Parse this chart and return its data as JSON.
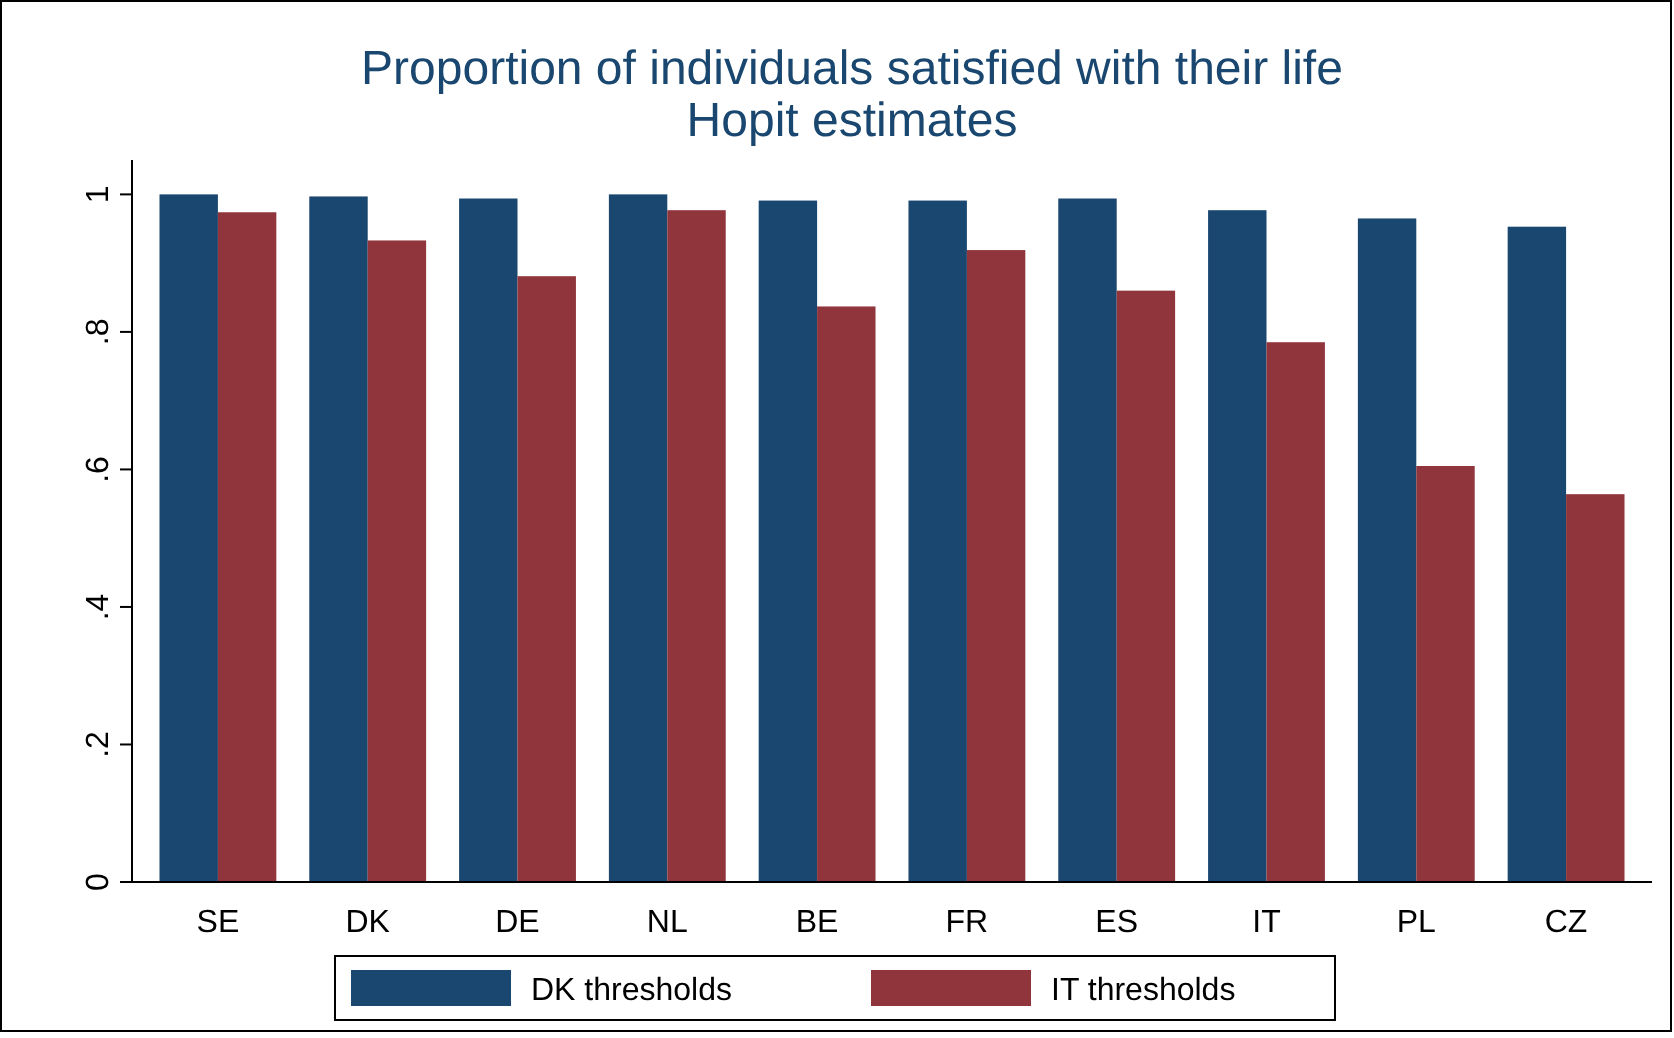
{
  "chart_data": {
    "type": "bar",
    "title": "Proportion of individuals satisfied with their life",
    "subtitle": "Hopit estimates",
    "categories": [
      "SE",
      "DK",
      "DE",
      "NL",
      "BE",
      "FR",
      "ES",
      "IT",
      "PL",
      "CZ"
    ],
    "series": [
      {
        "name": "DK thresholds",
        "color": "#1a476f",
        "values": [
          1.0,
          0.997,
          0.994,
          1.0,
          0.991,
          0.991,
          0.994,
          0.977,
          0.965,
          0.953
        ]
      },
      {
        "name": "IT thresholds",
        "color": "#90353b",
        "values": [
          0.974,
          0.933,
          0.881,
          0.977,
          0.837,
          0.919,
          0.86,
          0.785,
          0.605,
          0.564
        ]
      }
    ],
    "ylim": [
      0,
      1.05
    ],
    "yticks": [
      {
        "value": 0,
        "label": "0"
      },
      {
        "value": 0.2,
        "label": ".2"
      },
      {
        "value": 0.4,
        "label": ".4"
      },
      {
        "value": 0.6,
        "label": ".6"
      },
      {
        "value": 0.8,
        "label": ".8"
      },
      {
        "value": 1,
        "label": "1"
      }
    ],
    "grid": false,
    "legend": "bottom"
  }
}
